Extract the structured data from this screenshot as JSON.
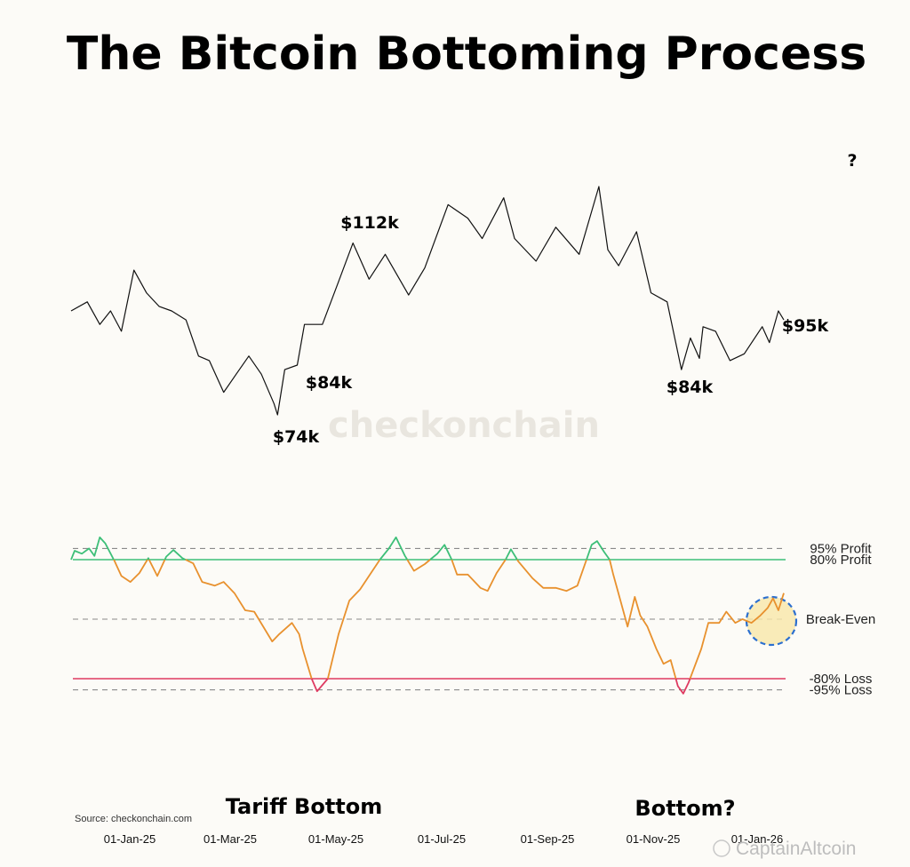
{
  "chart_data": {
    "type": "line",
    "title": "The Bitcoin Bottoming Process",
    "x_tick_labels": [
      "01-Jan-25",
      "01-Mar-25",
      "01-May-25",
      "01-Jul-25",
      "01-Sep-25",
      "01-Nov-25",
      "01-Jan-26"
    ],
    "price_series": {
      "name": "BTC Price (USD)",
      "points": [
        [
          "2024-12-16",
          97000
        ],
        [
          "2024-12-25",
          99000
        ],
        [
          "2025-01-01",
          94000
        ],
        [
          "2025-01-07",
          97000
        ],
        [
          "2025-01-13",
          92500
        ],
        [
          "2025-01-20",
          106000
        ],
        [
          "2025-01-27",
          101000
        ],
        [
          "2025-02-03",
          98000
        ],
        [
          "2025-02-10",
          97000
        ],
        [
          "2025-02-18",
          95000
        ],
        [
          "2025-02-25",
          87000
        ],
        [
          "2025-03-03",
          86000
        ],
        [
          "2025-03-11",
          79000
        ],
        [
          "2025-03-18",
          83000
        ],
        [
          "2025-03-25",
          87000
        ],
        [
          "2025-04-01",
          83000
        ],
        [
          "2025-04-08",
          76500
        ],
        [
          "2025-04-10",
          74000
        ],
        [
          "2025-04-14",
          84000
        ],
        [
          "2025-04-21",
          85000
        ],
        [
          "2025-04-25",
          94000
        ],
        [
          "2025-05-05",
          94000
        ],
        [
          "2025-05-14",
          103500
        ],
        [
          "2025-05-22",
          112000
        ],
        [
          "2025-05-31",
          104000
        ],
        [
          "2025-06-09",
          109500
        ],
        [
          "2025-06-22",
          100500
        ],
        [
          "2025-07-01",
          106500
        ],
        [
          "2025-07-14",
          120500
        ],
        [
          "2025-07-25",
          117500
        ],
        [
          "2025-08-02",
          113000
        ],
        [
          "2025-08-14",
          122000
        ],
        [
          "2025-08-20",
          113000
        ],
        [
          "2025-09-01",
          108000
        ],
        [
          "2025-09-12",
          115500
        ],
        [
          "2025-09-25",
          109500
        ],
        [
          "2025-10-06",
          124500
        ],
        [
          "2025-10-11",
          110500
        ],
        [
          "2025-10-17",
          107000
        ],
        [
          "2025-10-27",
          114500
        ],
        [
          "2025-11-04",
          101000
        ],
        [
          "2025-11-13",
          99000
        ],
        [
          "2025-11-21",
          84000
        ],
        [
          "2025-11-26",
          91000
        ],
        [
          "2025-12-01",
          86500
        ],
        [
          "2025-12-03",
          93500
        ],
        [
          "2025-12-10",
          92500
        ],
        [
          "2025-12-18",
          86000
        ],
        [
          "2025-12-26",
          87500
        ],
        [
          "2026-01-05",
          93500
        ],
        [
          "2026-01-09",
          90000
        ],
        [
          "2026-01-14",
          97000
        ],
        [
          "2026-01-17",
          95000
        ]
      ]
    },
    "oscillator_series": {
      "name": "Bottoming oscillator (%)",
      "points": [
        [
          "2024-12-16",
          80
        ],
        [
          "2024-12-18",
          92
        ],
        [
          "2024-12-22",
          88
        ],
        [
          "2024-12-26",
          95
        ],
        [
          "2024-12-29",
          85
        ],
        [
          "2025-01-01",
          110
        ],
        [
          "2025-01-04",
          102
        ],
        [
          "2025-01-09",
          79
        ],
        [
          "2025-01-13",
          58
        ],
        [
          "2025-01-18",
          50
        ],
        [
          "2025-01-23",
          62
        ],
        [
          "2025-01-28",
          82
        ],
        [
          "2025-02-02",
          58
        ],
        [
          "2025-02-07",
          84
        ],
        [
          "2025-02-11",
          93
        ],
        [
          "2025-02-16",
          82
        ],
        [
          "2025-02-22",
          75
        ],
        [
          "2025-02-27",
          50
        ],
        [
          "2025-03-06",
          45
        ],
        [
          "2025-03-11",
          50
        ],
        [
          "2025-03-17",
          35
        ],
        [
          "2025-03-23",
          12
        ],
        [
          "2025-03-28",
          10
        ],
        [
          "2025-04-02",
          -10
        ],
        [
          "2025-04-07",
          -30
        ],
        [
          "2025-04-11",
          -20
        ],
        [
          "2025-04-18",
          -5
        ],
        [
          "2025-04-22",
          -20
        ],
        [
          "2025-04-24",
          -40
        ],
        [
          "2025-04-29",
          -80
        ],
        [
          "2025-05-02",
          -97
        ],
        [
          "2025-05-08",
          -80
        ],
        [
          "2025-05-14",
          -20
        ],
        [
          "2025-05-20",
          25
        ],
        [
          "2025-05-26",
          40
        ],
        [
          "2025-06-01",
          62
        ],
        [
          "2025-06-06",
          80
        ],
        [
          "2025-06-11",
          95
        ],
        [
          "2025-06-15",
          110
        ],
        [
          "2025-06-20",
          85
        ],
        [
          "2025-06-25",
          65
        ],
        [
          "2025-07-01",
          74
        ],
        [
          "2025-07-04",
          80
        ],
        [
          "2025-07-08",
          88
        ],
        [
          "2025-07-12",
          100
        ],
        [
          "2025-07-16",
          80
        ],
        [
          "2025-07-19",
          60
        ],
        [
          "2025-07-25",
          60
        ],
        [
          "2025-08-01",
          42
        ],
        [
          "2025-08-05",
          38
        ],
        [
          "2025-08-10",
          62
        ],
        [
          "2025-08-15",
          80
        ],
        [
          "2025-08-18",
          94
        ],
        [
          "2025-08-22",
          78
        ],
        [
          "2025-08-30",
          55
        ],
        [
          "2025-09-05",
          42
        ],
        [
          "2025-09-12",
          42
        ],
        [
          "2025-09-18",
          38
        ],
        [
          "2025-09-24",
          45
        ],
        [
          "2025-10-02",
          100
        ],
        [
          "2025-10-05",
          105
        ],
        [
          "2025-10-09",
          90
        ],
        [
          "2025-10-12",
          80
        ],
        [
          "2025-10-14",
          60
        ],
        [
          "2025-10-18",
          25
        ],
        [
          "2025-10-22",
          -10
        ],
        [
          "2025-10-26",
          30
        ],
        [
          "2025-10-29",
          5
        ],
        [
          "2025-11-02",
          -10
        ],
        [
          "2025-11-07",
          -40
        ],
        [
          "2025-11-11",
          -60
        ],
        [
          "2025-11-15",
          -55
        ],
        [
          "2025-11-19",
          -90
        ],
        [
          "2025-11-22",
          -100
        ],
        [
          "2025-11-25",
          -85
        ],
        [
          "2025-12-02",
          -40
        ],
        [
          "2025-12-06",
          -5
        ],
        [
          "2025-12-12",
          -5
        ],
        [
          "2025-12-16",
          10
        ],
        [
          "2025-12-21",
          -5
        ],
        [
          "2025-12-25",
          0
        ],
        [
          "2025-12-30",
          -5
        ],
        [
          "2026-01-04",
          5
        ],
        [
          "2026-01-08",
          15
        ],
        [
          "2026-01-11",
          28
        ],
        [
          "2026-01-14",
          12
        ],
        [
          "2026-01-17",
          35
        ]
      ]
    },
    "reference_levels": [
      {
        "label": "95% Profit",
        "value": 95,
        "style": "dashed"
      },
      {
        "label": "80% Profit",
        "value": 80,
        "style": "solid",
        "color": "#3dbf78"
      },
      {
        "label": "Break-Even",
        "value": 0,
        "style": "dashed"
      },
      {
        "label": "-80% Loss",
        "value": -80,
        "style": "solid",
        "color": "#de3a61"
      },
      {
        "label": "-95% Loss",
        "value": -95,
        "style": "dashed"
      }
    ],
    "oscillator_range": [
      -100,
      110
    ],
    "price_annotations": [
      {
        "text": "$112k",
        "color": "#0f7a5c"
      },
      {
        "text": "$84k",
        "color": "#e8912e"
      },
      {
        "text": "$74k",
        "color": "#de3a61"
      },
      {
        "text": "$84k",
        "color": "#de3a61"
      },
      {
        "text": "$95k",
        "color": "#e8912e"
      },
      {
        "text": "?",
        "color": "#0f7a5c"
      }
    ],
    "zone_labels": [
      {
        "text": "Tariff Bottom",
        "color": "#de3a61"
      },
      {
        "text": "Bottom?",
        "color": "#de3a61"
      }
    ],
    "highlight": "Break-Even",
    "colors": {
      "profit": "#3dbf78",
      "neutral": "#e8912e",
      "loss": "#de3a61",
      "price": "#111111"
    }
  },
  "footer": {
    "source": "Source: checkonchain.com",
    "watermark": "checkonchain",
    "credit": "CaptainAltcoin"
  }
}
